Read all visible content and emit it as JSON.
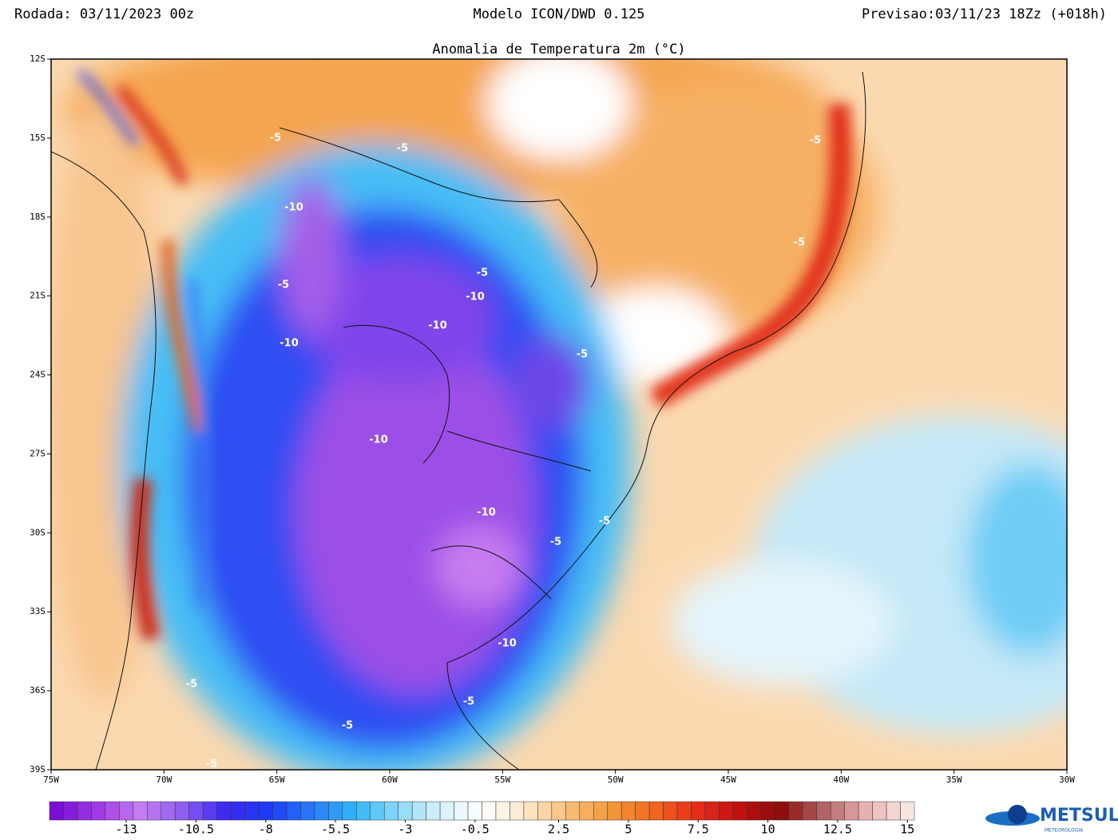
{
  "header": {
    "run": "Rodada: 03/11/2023 00z",
    "model": "Modelo ICON/DWD 0.125",
    "forecast": "Previsao:03/11/23 18Zz (+018h)"
  },
  "map": {
    "title": "Anomalia de Temperatura 2m (°C)",
    "xlim": [
      -75,
      -30
    ],
    "ylim": [
      -12,
      -39
    ],
    "xticks": [
      {
        "value": -75,
        "label": "75W"
      },
      {
        "value": -70,
        "label": "70W"
      },
      {
        "value": -65,
        "label": "65W"
      },
      {
        "value": -60,
        "label": "60W"
      },
      {
        "value": -55,
        "label": "55W"
      },
      {
        "value": -50,
        "label": "50W"
      },
      {
        "value": -45,
        "label": "45W"
      },
      {
        "value": -40,
        "label": "40W"
      },
      {
        "value": -35,
        "label": "35W"
      },
      {
        "value": -30,
        "label": "30W"
      }
    ],
    "yticks": [
      {
        "value": -12,
        "label": "12S"
      },
      {
        "value": -15,
        "label": "15S"
      },
      {
        "value": -18,
        "label": "18S"
      },
      {
        "value": -21,
        "label": "21S"
      },
      {
        "value": -24,
        "label": "24S"
      },
      {
        "value": -27,
        "label": "27S"
      },
      {
        "value": -30,
        "label": "30S"
      },
      {
        "value": -33,
        "label": "33S"
      },
      {
        "value": -36,
        "label": "36S"
      },
      {
        "value": -39,
        "label": "39S"
      }
    ],
    "contour_labels": [
      -5,
      -10,
      -5,
      -10,
      -10,
      -5,
      -10,
      -10,
      -10,
      -5,
      -5,
      -10,
      -5,
      -5,
      -5,
      -5,
      -5,
      -5,
      -5,
      -5
    ]
  },
  "colorbar": {
    "lim": [
      -15.75,
      15.25
    ],
    "ticks": [
      -13,
      -10.5,
      -8,
      -5.5,
      -3,
      -0.5,
      2.5,
      5,
      7.5,
      10,
      12.5,
      15
    ],
    "colors": [
      "#7a0fd6",
      "#a23be6",
      "#c57ef0",
      "#8a5cf0",
      "#3a28f0",
      "#1a3cf5",
      "#2a7af8",
      "#2fb5f5",
      "#8ad8f8",
      "#d6f0fb",
      "#ffffff",
      "#fde8cc",
      "#f9c07a",
      "#f39a3a",
      "#f26a1e",
      "#e8301a",
      "#c41010",
      "#8c0a0a",
      "#b06060",
      "#e8b0b0",
      "#f7e6e0"
    ]
  },
  "logo": {
    "name": "METSUL",
    "tagline": "METEOROLOGIA"
  }
}
